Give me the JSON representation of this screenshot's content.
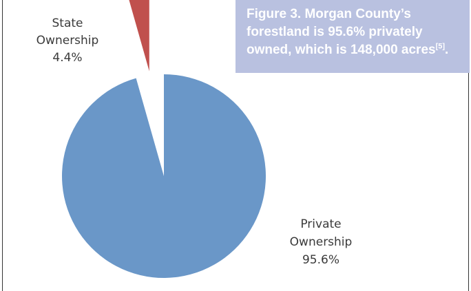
{
  "caption": {
    "text": "Figure 3. Morgan County’s forestland is 95.6% privately owned, which is 148,000 acres",
    "superscript": "[5]",
    "end": "."
  },
  "chart_data": {
    "type": "pie",
    "slices": [
      {
        "label_line1": "State",
        "label_line2": "Ownership",
        "value_label": "4.4%",
        "value": 4.4,
        "color": "#c0504d",
        "exploded": true
      },
      {
        "label_line1": "Private",
        "label_line2": "Ownership",
        "value_label": "95.6%",
        "value": 95.6,
        "color": "#6a97c8",
        "exploded": false
      }
    ]
  }
}
